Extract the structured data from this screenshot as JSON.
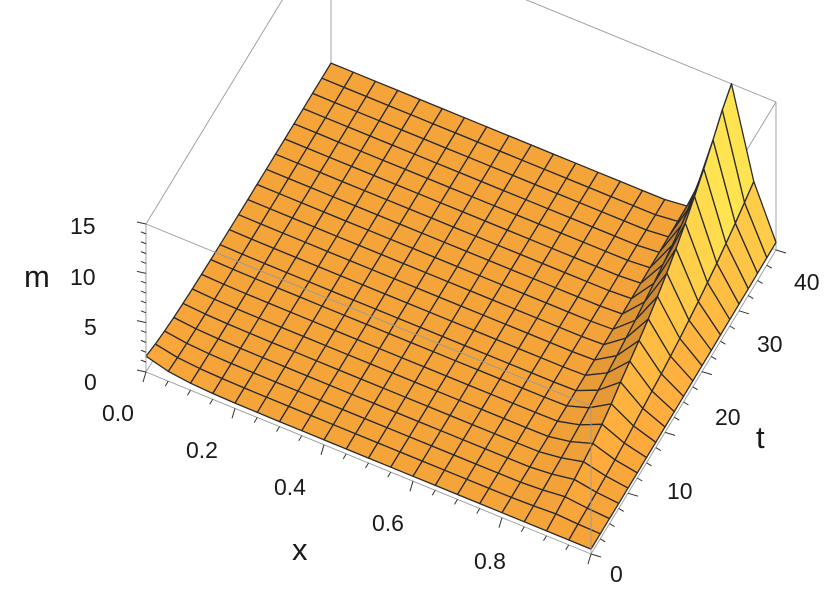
{
  "chart_data": {
    "type": "surface3d",
    "title": "",
    "xlabel": "x",
    "ylabel": "t",
    "zlabel": "m",
    "xlim": [
      0,
      1
    ],
    "ylim": [
      0,
      40
    ],
    "zlim": [
      0,
      15
    ],
    "x_ticks": [
      "0.0",
      "0.2",
      "0.4",
      "0.6",
      "0.8"
    ],
    "y_ticks": [
      "0",
      "10",
      "20",
      "30",
      "40"
    ],
    "z_ticks": [
      "0",
      "5",
      "10",
      "15"
    ],
    "grid_lines": 20,
    "surface_color": "#f5a43a",
    "mesh_color": "#2b2b2b",
    "box_color": "#9a9a9a",
    "features": {
      "flat_level_m": 0.5,
      "left_edge_m_at_t0": 1.6,
      "peak": {
        "x": 0.97,
        "t": 40,
        "m": 15
      },
      "ridge_x": 0.9,
      "ridge_width": 0.05
    }
  }
}
